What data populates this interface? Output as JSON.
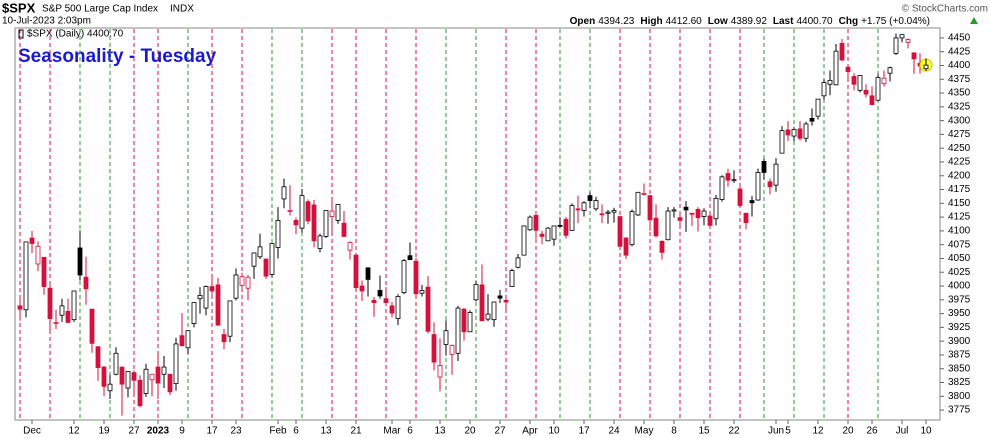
{
  "header": {
    "symbol": "$SPX",
    "description": "S&P 500 Large Cap Index",
    "exchange": "INDX",
    "timestamp": "10-Jul-2023 2:03pm",
    "quote": [
      {
        "label": "Open",
        "value": "4394.23"
      },
      {
        "label": "High",
        "value": "4412.60"
      },
      {
        "label": "Low",
        "value": "4389.92"
      },
      {
        "label": "Last",
        "value": "4400.70"
      },
      {
        "label": "Chg",
        "value": "+1.75 (+0.04%)"
      }
    ],
    "copyright": "© StockCharts.com"
  },
  "chart_data": {
    "type": "candlestick",
    "title": "Seasonality - Tuesday",
    "legend": "$SPX (Daily) 4400.70",
    "categories": [
      null,
      null,
      "Dec",
      null,
      null,
      null,
      null,
      null,
      null,
      "12",
      null,
      null,
      null,
      null,
      "19",
      null,
      null,
      null,
      null,
      "27",
      null,
      null,
      null,
      "2023",
      null,
      null,
      null,
      "9",
      null,
      null,
      null,
      null,
      "17",
      null,
      null,
      null,
      "23",
      null,
      null,
      null,
      null,
      null,
      null,
      "Feb",
      null,
      null,
      "6",
      null,
      null,
      null,
      null,
      "13",
      null,
      null,
      null,
      null,
      "21",
      null,
      null,
      null,
      null,
      null,
      "Mar",
      null,
      null,
      "6",
      null,
      null,
      null,
      null,
      "13",
      null,
      null,
      null,
      null,
      "20",
      null,
      null,
      null,
      null,
      "27",
      null,
      null,
      null,
      null,
      "Apr",
      null,
      null,
      null,
      "10",
      null,
      null,
      null,
      null,
      "17",
      null,
      null,
      null,
      null,
      "24",
      null,
      null,
      null,
      null,
      "May",
      null,
      null,
      null,
      null,
      "8",
      null,
      null,
      null,
      null,
      "15",
      null,
      null,
      null,
      null,
      "22",
      null,
      null,
      null,
      null,
      null,
      null,
      "Jun",
      null,
      "5",
      null,
      null,
      null,
      null,
      "12",
      null,
      null,
      null,
      null,
      "20",
      null,
      null,
      null,
      "26",
      null,
      null,
      null,
      null,
      "Jul",
      null,
      null,
      null,
      "10"
    ],
    "bold_labels": [
      "2023"
    ],
    "open": [
      3964,
      3957,
      4087,
      4040,
      4052,
      3996,
      3934,
      3947,
      3954,
      3939,
      4069,
      4016,
      3958,
      3890,
      3853,
      3810,
      3840,
      3853,
      3815,
      3843,
      3829,
      3805,
      3830,
      3853,
      3840,
      3840,
      3823,
      3910,
      3888,
      3932,
      3977,
      3960,
      3999,
      4002,
      3912,
      3909,
      3978,
      4001,
      3996,
      4036,
      4053,
      4049,
      4021,
      4070,
      4158,
      4136,
      4119,
      4105,
      4153,
      4147,
      4068,
      4090,
      4126,
      4119,
      4114,
      4065,
      4056,
      4000,
      4033,
      3974,
      3992,
      3977,
      3964,
      3941,
      3988,
      4055,
      4045,
      3987,
      3998,
      3912,
      3835,
      3894,
      3876,
      3878,
      3958,
      3917,
      3975,
      4002,
      3940,
      3939,
      3982,
      3974,
      3999,
      4034,
      4056,
      4102,
      4128,
      4094,
      4082,
      4085,
      4110,
      4121,
      4101,
      4140,
      4137,
      4164,
      4140,
      4131,
      4132,
      4134,
      4126,
      4087,
      4075,
      4129,
      4166,
      4164,
      4123,
      4081,
      4084,
      4136,
      4124,
      4143,
      4132,
      4139,
      4126,
      4127,
      4122,
      4157,
      4204,
      4191,
      4176,
      4132,
      4155,
      4156,
      4226,
      4189,
      4183,
      4241,
      4283,
      4272,
      4285,
      4268,
      4304,
      4308,
      4345,
      4366,
      4365,
      4440,
      4397,
      4380,
      4355,
      4355,
      4345,
      4337,
      4367,
      4386,
      4422,
      4450,
      4442,
      4423,
      4404,
      4394.23
    ],
    "high": [
      3976,
      4080,
      4100,
      4081,
      4052,
      4002,
      3957,
      3977,
      3977,
      3991,
      4101,
      4053,
      3958,
      3890,
      3855,
      3839,
      3889,
      3853,
      3845,
      3847,
      3838,
      3859,
      3840,
      3879,
      3873,
      3840,
      3906,
      3951,
      3919,
      3970,
      3998,
      4001,
      4015,
      4015,
      3922,
      3973,
      4032,
      4024,
      4020,
      4061,
      4095,
      4050,
      4077,
      4143,
      4195,
      4183,
      4124,
      4176,
      4157,
      4156,
      4095,
      4138,
      4156,
      4149,
      4136,
      4081,
      4056,
      4010,
      4034,
      3980,
      4019,
      3998,
      3971,
      3985,
      4049,
      4079,
      4051,
      4002,
      4018,
      3934,
      3905,
      3938,
      3894,
      3964,
      3960,
      3956,
      4010,
      4039,
      3985,
      3972,
      3993,
      3980,
      4031,
      4058,
      4110,
      4128,
      4133,
      4100,
      4107,
      4109,
      4125,
      4125,
      4150,
      4164,
      4154,
      4170,
      4162,
      4148,
      4138,
      4142,
      4126,
      4089,
      4139,
      4170,
      4186,
      4164,
      4148,
      4083,
      4143,
      4143,
      4131,
      4154,
      4132,
      4143,
      4141,
      4135,
      4165,
      4201,
      4213,
      4210,
      4186,
      4132,
      4163,
      4213,
      4231,
      4195,
      4232,
      4290,
      4299,
      4288,
      4299,
      4298,
      4322,
      4339,
      4375,
      4391,
      4439,
      4448,
      4401,
      4386,
      4382,
      4366,
      4362,
      4384,
      4391,
      4398,
      4458,
      4456,
      4449,
      4423,
      4422,
      4412.6
    ],
    "low": [
      3937,
      3943,
      4060,
      4027,
      3984,
      3918,
      3922,
      3935,
      3933,
      3935,
      4010,
      3966,
      3879,
      3828,
      3800,
      3795,
      3838,
      3765,
      3798,
      3802,
      3780,
      3799,
      3800,
      3795,
      3815,
      3802,
      3810,
      3890,
      3877,
      3925,
      3950,
      3947,
      3984,
      3928,
      3885,
      3898,
      3974,
      3990,
      3974,
      4013,
      4049,
      4013,
      4016,
      4050,
      4141,
      4128,
      4094,
      4097,
      4112,
      4070,
      4061,
      4087,
      4096,
      4113,
      4089,
      4048,
      3996,
      3973,
      3981,
      3944,
      3977,
      3969,
      3943,
      3929,
      3985,
      4047,
      3984,
      3981,
      3914,
      3847,
      3809,
      3874,
      3839,
      3864,
      3901,
      3917,
      3972,
      3936,
      3936,
      3926,
      3969,
      3953,
      3999,
      4032,
      4056,
      4100,
      4086,
      4076,
      4082,
      4073,
      4107,
      4086,
      4100,
      4114,
      4126,
      4141,
      4136,
      4114,
      4113,
      4115,
      4071,
      4049,
      4072,
      4127,
      4164,
      4100,
      4088,
      4048,
      4083,
      4124,
      4110,
      4098,
      4109,
      4099,
      4110,
      4109,
      4110,
      4153,
      4180,
      4187,
      4145,
      4103,
      4126,
      4155,
      4193,
      4166,
      4171,
      4241,
      4263,
      4263,
      4264,
      4261,
      4291,
      4302,
      4338,
      4346,
      4364,
      4408,
      4377,
      4355,
      4351,
      4342,
      4328,
      4336,
      4362,
      4371,
      4419,
      4442,
      4431,
      4385,
      4385,
      4389.92
    ],
    "close": [
      3958,
      4080,
      4077,
      4072,
      3999,
      3941,
      3934,
      3964,
      3934,
      3991,
      4020,
      3995,
      3896,
      3852,
      3818,
      3822,
      3878,
      3822,
      3845,
      3829,
      3783,
      3849,
      3840,
      3824,
      3853,
      3808,
      3895,
      3892,
      3919,
      3970,
      3983,
      3999,
      3991,
      3929,
      3899,
      3973,
      4020,
      4017,
      4016,
      4060,
      4071,
      4018,
      4077,
      4119,
      4180,
      4137,
      4111,
      4164,
      4118,
      4082,
      4091,
      4137,
      4136,
      4148,
      4090,
      4079,
      3997,
      3991,
      4012,
      3970,
      3982,
      3970,
      3951,
      3981,
      4046,
      4048,
      3986,
      3992,
      3918,
      3862,
      3856,
      3919,
      3892,
      3960,
      3917,
      3952,
      4003,
      3937,
      3949,
      3971,
      3978,
      3971,
      4028,
      4051,
      4109,
      4125,
      4101,
      4090,
      4105,
      4109,
      4109,
      4092,
      4146,
      4138,
      4151,
      4155,
      4155,
      4130,
      4134,
      4137,
      4072,
      4056,
      4135,
      4170,
      4168,
      4120,
      4091,
      4061,
      4136,
      4138,
      4119,
      4138,
      4131,
      4124,
      4136,
      4110,
      4159,
      4198,
      4192,
      4193,
      4146,
      4115,
      4151,
      4206,
      4206,
      4180,
      4221,
      4282,
      4274,
      4284,
      4268,
      4294,
      4299,
      4339,
      4369,
      4373,
      4426,
      4410,
      4389,
      4366,
      4382,
      4348,
      4329,
      4378,
      4377,
      4396,
      4450,
      4456,
      4447,
      4412,
      4399,
      4400.7
    ],
    "tuesdays": [
      0,
      5,
      10,
      15,
      19,
      23,
      28,
      32,
      37,
      42,
      47,
      52,
      56,
      61,
      66,
      71,
      76,
      81,
      86,
      90,
      95,
      100,
      105,
      110,
      115,
      120,
      124,
      129,
      134,
      138,
      143
    ],
    "up_color": "#000000",
    "down_color": "#d6103c",
    "tuesday_up_color": "#2a9a2a",
    "tuesday_down_color": "#d6103c",
    "highlight_color": "#ffff33",
    "ylim": [
      3757,
      4468
    ],
    "yticks": [
      3775,
      3800,
      3825,
      3850,
      3875,
      3900,
      3925,
      3950,
      3975,
      4000,
      4025,
      4050,
      4075,
      4100,
      4125,
      4150,
      4175,
      4200,
      4225,
      4250,
      4275,
      4300,
      4325,
      4350,
      4375,
      4400,
      4425,
      4450
    ],
    "grid": false
  }
}
